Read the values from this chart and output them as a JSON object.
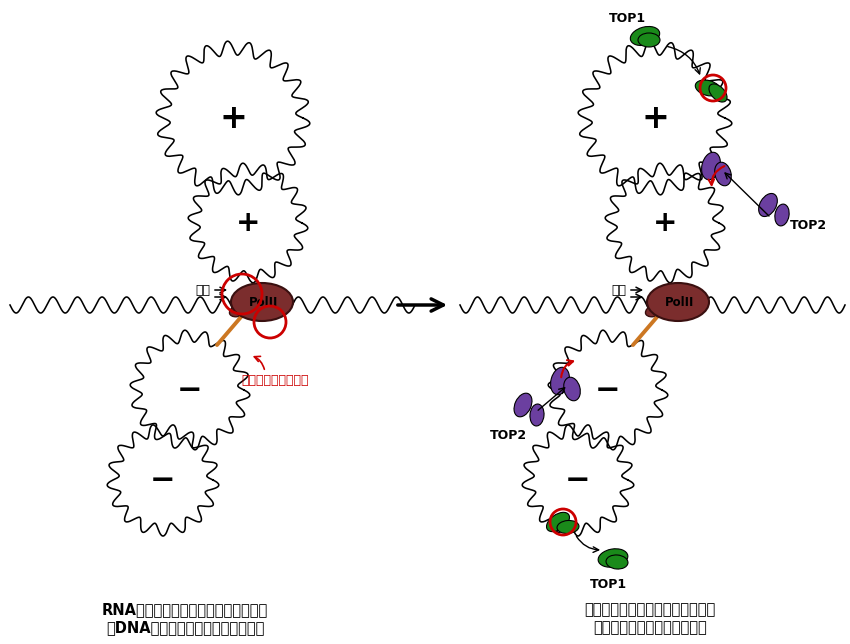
{
  "bg_color": "#ffffff",
  "caption_left_line1": "RNAポリメラーゼの進行によって転写",
  "caption_left_line2": "はDNAにねじれストレスを蓄積する",
  "caption_right_line1": "トポイソメラーゼ１と２は転写中",
  "caption_right_line2": "のねじれストレスを解消する",
  "polii_color": "#7B2D2D",
  "polii_outline": "#3a1010",
  "rna_color": "#CC7722",
  "top1_color": "#1a8a1a",
  "top2_color": "#6B3FA0",
  "red_color": "#cc0000",
  "coil_color": "#000000",
  "supercoil_label": "スーパーコイリング",
  "transcription_label": "転写"
}
